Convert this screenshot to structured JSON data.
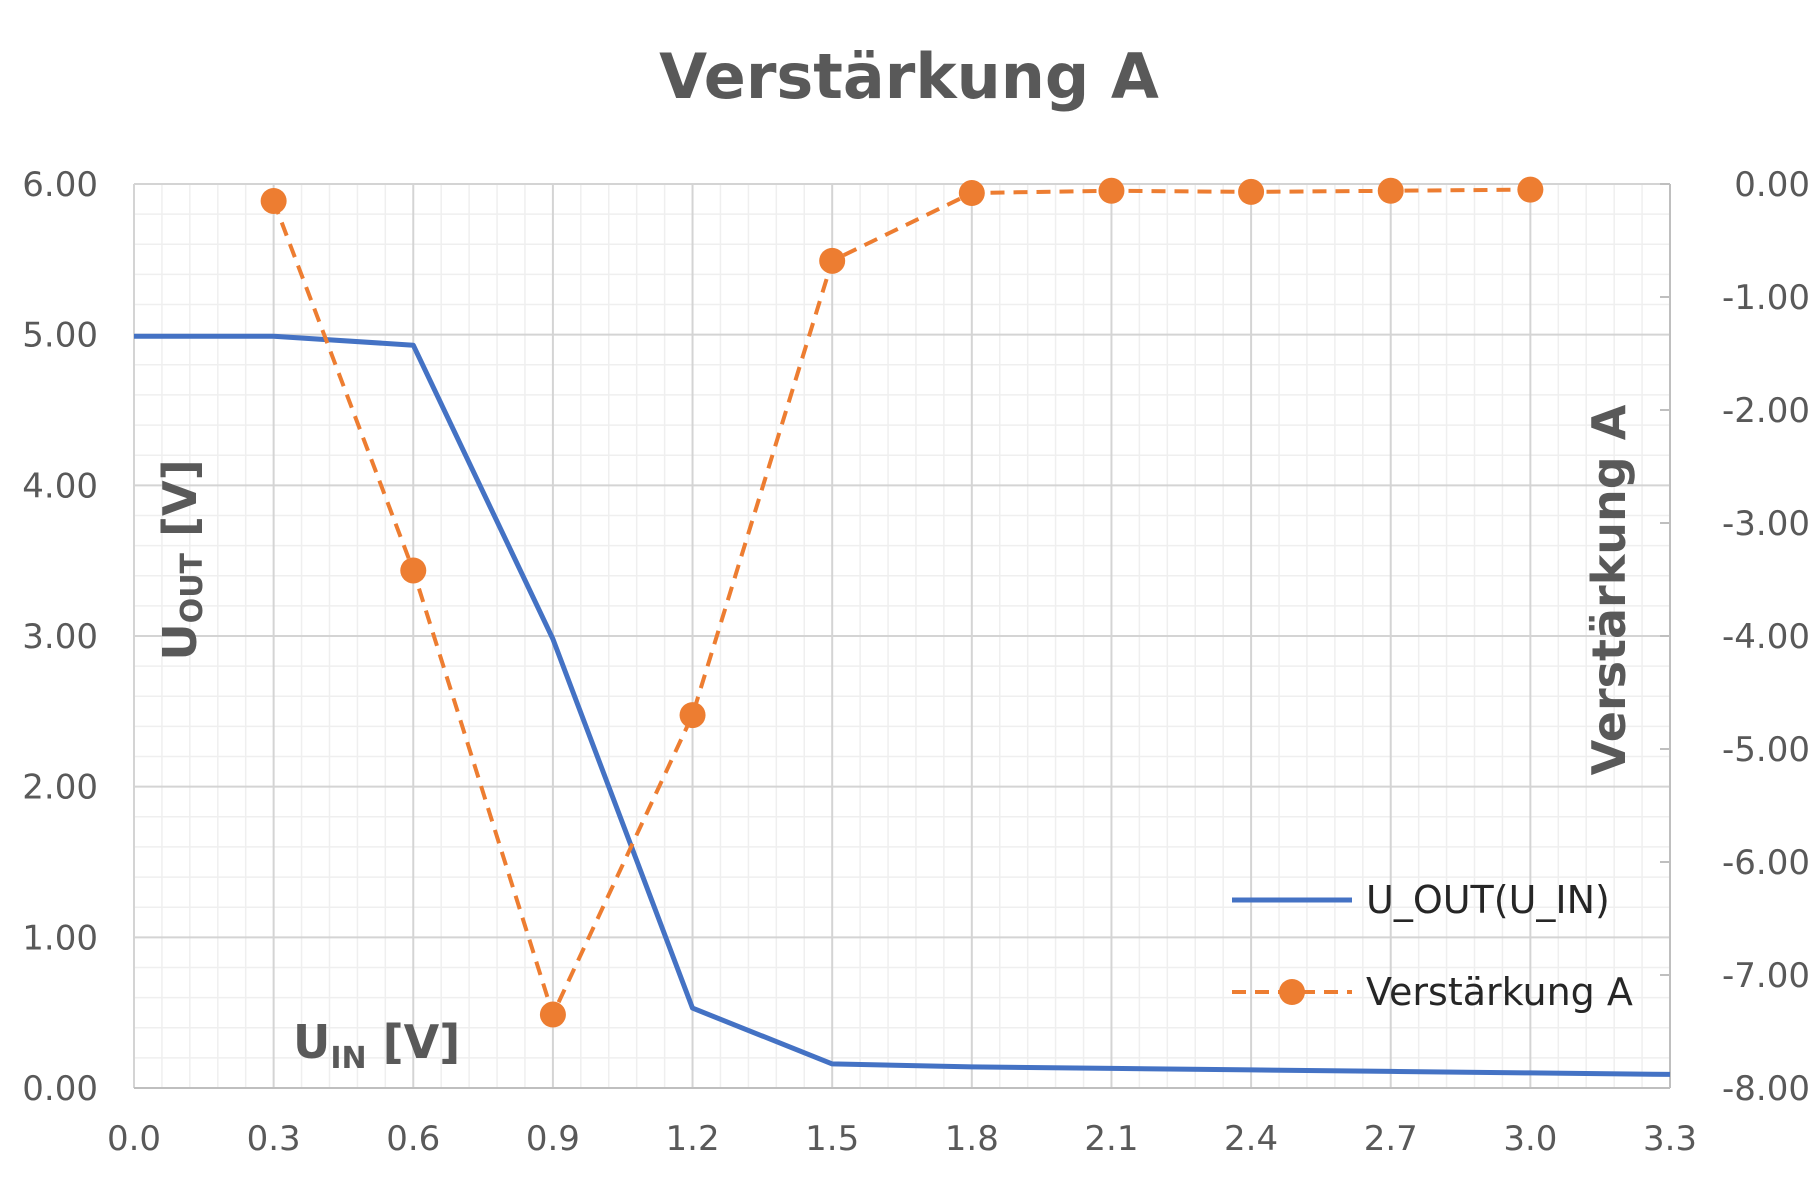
{
  "chart_data": {
    "type": "line",
    "title": "Verstärkung A",
    "xlabel": {
      "main": "U",
      "sub": "IN",
      "unit": " [V]"
    },
    "ylabel_left": {
      "main": "U",
      "sub": "OUT",
      "unit": " [V]"
    },
    "ylabel_right": "Verstärkung A",
    "xlim": [
      0,
      3.3
    ],
    "ylim_left": [
      0,
      6
    ],
    "ylim_right": [
      -8,
      0
    ],
    "x_ticks": [
      "0.0",
      "0.3",
      "0.6",
      "0.9",
      "1.2",
      "1.5",
      "1.8",
      "2.1",
      "2.4",
      "2.7",
      "3.0",
      "3.3"
    ],
    "y_left_ticks": [
      "0.00",
      "1.00",
      "2.00",
      "3.00",
      "4.00",
      "5.00",
      "6.00"
    ],
    "y_right_ticks": [
      "0.00",
      "-1.00",
      "-2.00",
      "-3.00",
      "-4.00",
      "-5.00",
      "-6.00",
      "-7.00",
      "-8.00"
    ],
    "grid": true,
    "legend_position": "bottom-right",
    "series": [
      {
        "name": "U_OUT(U_IN)",
        "axis": "left",
        "style": "solid",
        "color": "#4472C4",
        "x": [
          0.0,
          0.3,
          0.6,
          0.9,
          1.2,
          1.5,
          1.8,
          2.1,
          2.4,
          2.7,
          3.0,
          3.3
        ],
        "y": [
          4.99,
          4.99,
          4.93,
          2.98,
          0.53,
          0.16,
          0.14,
          0.13,
          0.12,
          0.11,
          0.1,
          0.09
        ]
      },
      {
        "name": "Verstärkung A",
        "axis": "right",
        "style": "dashed",
        "color": "#ED7D31",
        "markers": true,
        "x": [
          0.3,
          0.6,
          0.9,
          1.2,
          1.5,
          1.8,
          2.1,
          2.4,
          2.7,
          3.0
        ],
        "y": [
          -0.15,
          -3.42,
          -7.35,
          -4.7,
          -0.68,
          -0.08,
          -0.06,
          -0.07,
          -0.06,
          -0.05
        ]
      }
    ]
  }
}
